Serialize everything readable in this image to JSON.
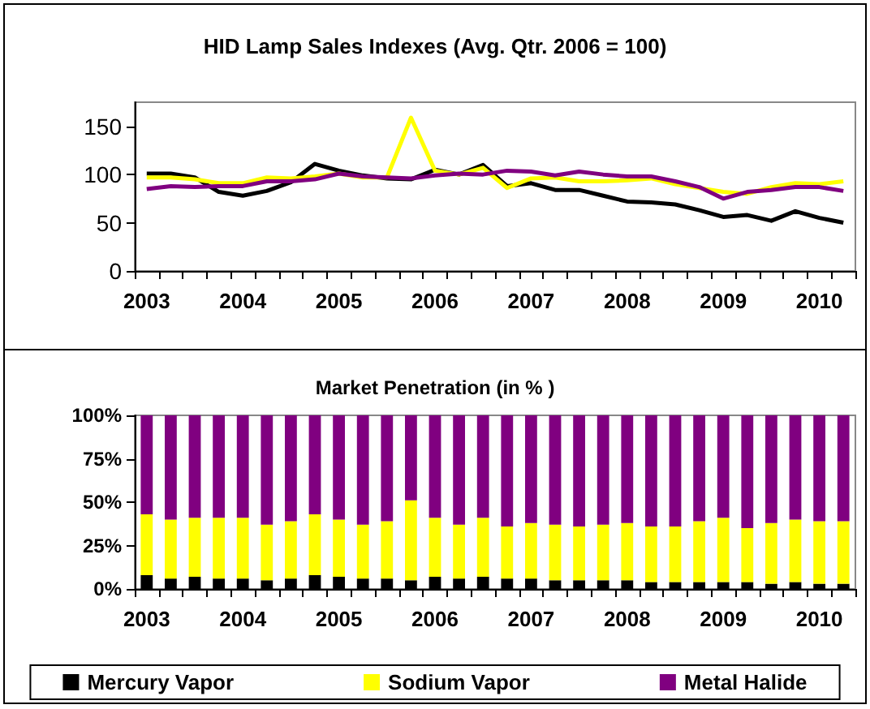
{
  "chart_data": [
    {
      "type": "line",
      "title": "HID Lamp Sales Indexes (Avg. Qtr. 2006 = 100)",
      "categories": [
        "2003",
        null,
        null,
        null,
        "2004",
        null,
        null,
        null,
        "2005",
        null,
        null,
        null,
        "2006",
        null,
        null,
        null,
        "2007",
        null,
        null,
        null,
        "2008",
        null,
        null,
        null,
        "2009",
        null,
        null,
        null,
        "2010",
        null
      ],
      "series": [
        {
          "color": "#000000",
          "values": [
            101,
            101,
            97,
            82,
            78,
            83,
            92,
            111,
            104,
            99,
            96,
            95,
            105,
            100,
            110,
            88,
            91,
            84,
            84,
            78,
            72,
            71,
            69,
            63,
            56,
            58,
            52,
            62,
            55,
            50
          ]
        },
        {
          "color": "#ffff00",
          "values": [
            97,
            97,
            95,
            91,
            91,
            97,
            96,
            98,
            101,
            97,
            97,
            159,
            104,
            100,
            107,
            86,
            96,
            97,
            93,
            93,
            94,
            96,
            90,
            86,
            82,
            80,
            87,
            91,
            90,
            93
          ]
        },
        {
          "color": "#800080",
          "values": [
            85,
            88,
            87,
            88,
            88,
            93,
            93,
            95,
            101,
            98,
            97,
            96,
            99,
            101,
            100,
            104,
            103,
            99,
            103,
            100,
            98,
            98,
            93,
            87,
            75,
            82,
            84,
            87,
            87,
            83
          ]
        }
      ],
      "ylim": [
        0,
        175
      ],
      "yticks": [
        0,
        50,
        100,
        150
      ],
      "marker": "none",
      "legend": false
    },
    {
      "type": "bar",
      "stacked": true,
      "title": "Market Penetration (in % )",
      "categories": [
        "2003",
        null,
        null,
        null,
        "2004",
        null,
        null,
        null,
        "2005",
        null,
        null,
        null,
        "2006",
        null,
        null,
        null,
        "2007",
        null,
        null,
        null,
        "2008",
        null,
        null,
        null,
        "2009",
        null,
        null,
        null,
        "2010",
        null
      ],
      "series": [
        {
          "name": "Mercury Vapor",
          "color": "#000000",
          "values": [
            8,
            6,
            7,
            6,
            6,
            5,
            6,
            8,
            7,
            6,
            6,
            5,
            7,
            6,
            7,
            6,
            6,
            5,
            5,
            5,
            5,
            4,
            4,
            4,
            4,
            4,
            3,
            4,
            3,
            3
          ]
        },
        {
          "name": "Sodium Vapor",
          "color": "#ffff00",
          "values": [
            35,
            34,
            34,
            35,
            35,
            32,
            33,
            35,
            33,
            31,
            33,
            46,
            34,
            31,
            34,
            30,
            32,
            32,
            31,
            32,
            33,
            32,
            32,
            35,
            37,
            31,
            35,
            36,
            36,
            36
          ]
        },
        {
          "name": "Metal Halide",
          "color": "#800080",
          "values": [
            57,
            60,
            59,
            59,
            59,
            63,
            61,
            57,
            60,
            63,
            61,
            49,
            59,
            63,
            59,
            64,
            62,
            63,
            64,
            63,
            62,
            64,
            64,
            61,
            59,
            65,
            62,
            60,
            61,
            61
          ]
        }
      ],
      "ylim": [
        0,
        100
      ],
      "yticks": [
        {
          "value": 0,
          "label": "0%"
        },
        {
          "value": 25,
          "label": "25%"
        },
        {
          "value": 50,
          "label": "50%"
        },
        {
          "value": 75,
          "label": "75%"
        },
        {
          "value": 100,
          "label": "100%"
        }
      ],
      "legend": "bottom"
    }
  ]
}
